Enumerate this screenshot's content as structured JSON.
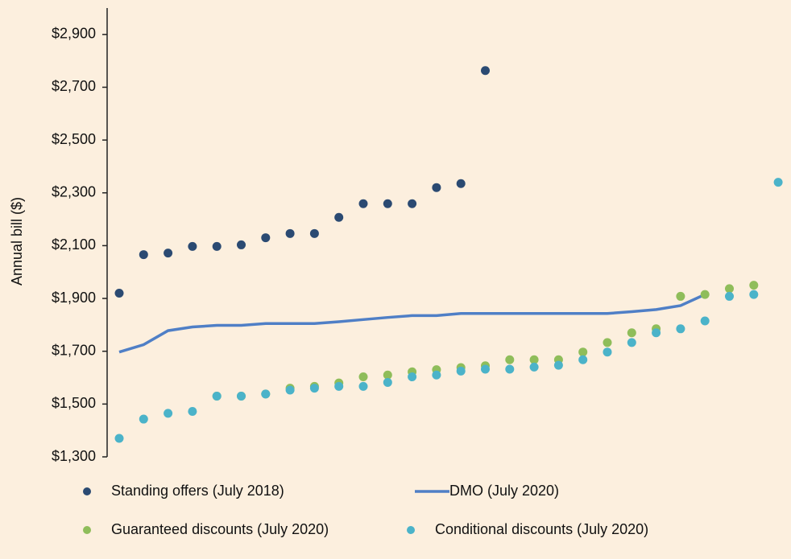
{
  "chart_data": {
    "type": "scatter-line",
    "y_label": "Annual bill ($)",
    "categories": [
      null,
      null,
      null,
      null,
      null,
      null,
      null,
      null,
      null,
      null,
      null,
      null,
      null,
      null,
      null,
      null,
      null,
      null,
      null,
      null,
      null,
      null,
      null,
      null,
      null,
      null,
      null,
      null
    ],
    "ylim": [
      1300,
      3000
    ],
    "yticks": [
      {
        "value": 1300,
        "label": "$1,300"
      },
      {
        "value": 1500,
        "label": "$1,500"
      },
      {
        "value": 1700,
        "label": "$1,700"
      },
      {
        "value": 1900,
        "label": "$1,900"
      },
      {
        "value": 2100,
        "label": "$2,100"
      },
      {
        "value": 2300,
        "label": "$2,300"
      },
      {
        "value": 2500,
        "label": "$2,500"
      },
      {
        "value": 2700,
        "label": "$2,700"
      },
      {
        "value": 2900,
        "label": "$2,900"
      }
    ],
    "grid": false,
    "series": [
      {
        "name": "Standing offers (July 2018)",
        "kind": "dots",
        "color": "#2b4a72",
        "values": [
          1920,
          2066,
          2072,
          2097,
          2097,
          2103,
          2130,
          2146,
          2146,
          2207,
          2259,
          2259,
          2259,
          2320,
          2335,
          2763,
          null,
          null,
          null,
          null,
          null,
          null,
          null,
          null,
          null,
          null,
          null,
          null
        ]
      },
      {
        "name": "DMO (July 2020)",
        "kind": "line",
        "color": "#4f7fc6",
        "values": [
          1697,
          1725,
          1778,
          1792,
          1798,
          1798,
          1805,
          1805,
          1805,
          1812,
          1820,
          1828,
          1835,
          1835,
          1843,
          1843,
          1843,
          1843,
          1843,
          1843,
          1843,
          1850,
          1858,
          1873,
          1915,
          null,
          null,
          null
        ]
      },
      {
        "name": "Guaranteed discounts (July 2020)",
        "kind": "dots",
        "color": "#8fbd5a",
        "values": [
          null,
          null,
          null,
          null,
          1530,
          1530,
          1538,
          1560,
          1567,
          1580,
          1603,
          1610,
          1622,
          1630,
          1638,
          1645,
          1668,
          1668,
          1668,
          1697,
          1733,
          1770,
          1785,
          1908,
          1915,
          1937,
          1950,
          null
        ]
      },
      {
        "name": "Conditional discounts (July 2020)",
        "kind": "dots",
        "color": "#4bb3c9",
        "values": [
          1370,
          1443,
          1465,
          1472,
          1530,
          1530,
          1538,
          1553,
          1560,
          1567,
          1567,
          1582,
          1603,
          1610,
          1625,
          1632,
          1632,
          1640,
          1647,
          1668,
          1697,
          1733,
          1770,
          1785,
          1815,
          1908,
          1915,
          2340
        ]
      }
    ]
  }
}
